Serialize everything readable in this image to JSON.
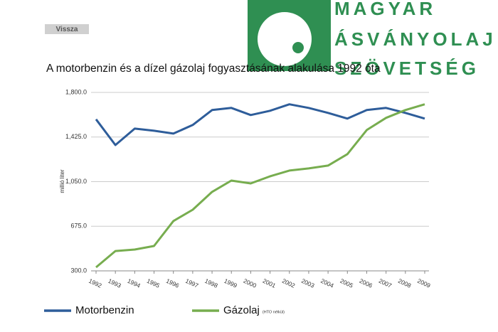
{
  "header": {
    "button": "Vissza",
    "logo": [
      "MAGYAR",
      "ÁSVÁNYOLAJ",
      "SZÖVETSÉG"
    ]
  },
  "chart_data": {
    "type": "line",
    "title": "A motorbenzin és a dízel gázolaj fogyasztásának alakulása 1992 óta",
    "y_label": "millió liter",
    "categories": [
      "1992",
      "1993",
      "1994",
      "1995",
      "1996",
      "1997",
      "1998",
      "1999",
      "2000",
      "2001",
      "2002",
      "2003",
      "2004",
      "2005",
      "2006",
      "2007",
      "2008",
      "2009"
    ],
    "series": [
      {
        "name": "Motorbenzin",
        "color": "#2e5d9a",
        "values": [
          1574,
          1358,
          1496,
          1478,
          1454,
          1526,
          1652,
          1670,
          1610,
          1646,
          1700,
          1670,
          1628,
          1580,
          1652,
          1670,
          1628,
          1580
        ]
      },
      {
        "name": "Gázolaj",
        "note": "(HTO nélkül)",
        "color": "#77ad4f",
        "values": [
          330,
          467,
          479,
          509,
          719,
          814,
          964,
          1059,
          1035,
          1095,
          1143,
          1161,
          1185,
          1281,
          1484,
          1586,
          1652,
          1700
        ]
      }
    ],
    "ylim": [
      300,
      1800
    ],
    "yticks": [
      {
        "value": 300,
        "label": "300.0"
      },
      {
        "value": 675,
        "label": "675.0"
      },
      {
        "value": 1050,
        "label": "1,050.0"
      },
      {
        "value": 1425,
        "label": "1,425.0"
      },
      {
        "value": 1800,
        "label": "1,800.0"
      }
    ],
    "grid": true
  }
}
